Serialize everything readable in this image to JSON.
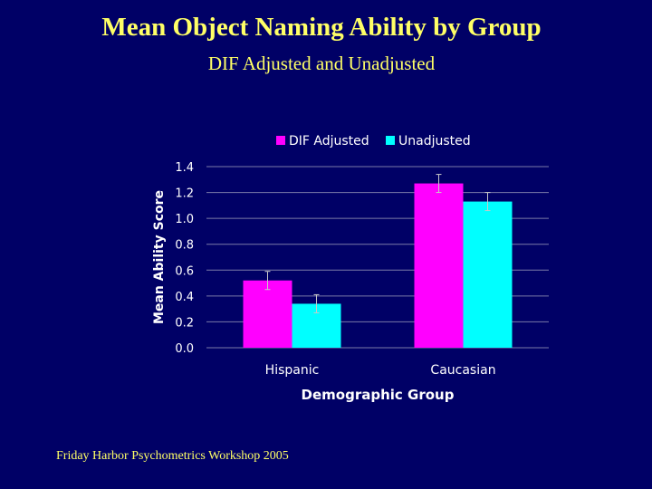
{
  "slide": {
    "title": "Mean Object Naming Ability by Group",
    "subtitle": "DIF Adjusted and Unadjusted",
    "footer": "Friday Harbor Psychometrics Workshop 2005"
  },
  "colors": {
    "background": "#000066",
    "title_text": "#FFFF66",
    "chart_text": "#FFFFFF",
    "gridline": "#7A7AA8",
    "series_dif": "#FF00FF",
    "series_unadj": "#00FFFF",
    "error_bar": "#C8C8C8"
  },
  "chart_data": {
    "type": "bar",
    "xlabel": "Demographic Group",
    "ylabel": "Mean Ability Score",
    "categories": [
      "Hispanic",
      "Caucasian"
    ],
    "series": [
      {
        "name": "DIF Adjusted",
        "values": [
          0.52,
          1.27
        ],
        "error": [
          0.07,
          0.07
        ]
      },
      {
        "name": "Unadjusted",
        "values": [
          0.34,
          1.13
        ],
        "error": [
          0.07,
          0.07
        ]
      }
    ],
    "ylim": [
      0.0,
      1.4
    ],
    "yticks": [
      "0.0",
      "0.2",
      "0.4",
      "0.6",
      "0.8",
      "1.0",
      "1.2",
      "1.4"
    ],
    "grid": true,
    "legend_position": "top"
  }
}
